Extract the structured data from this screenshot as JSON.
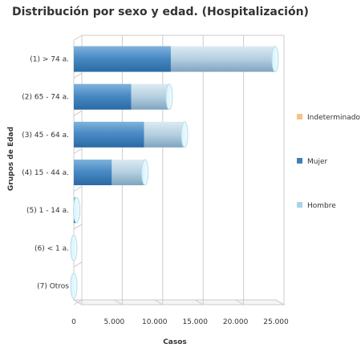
{
  "chart_data": {
    "type": "bar",
    "orientation": "horizontal",
    "stacked": true,
    "style": "3d-cylinder",
    "title": "Distribución por sexo y edad. (Hospitalización)",
    "xlabel": "Casos",
    "ylabel": "Grupos de Edad",
    "xlim": [
      0,
      25000
    ],
    "x_ticks": [
      "0",
      "5.000",
      "10.000",
      "15.000",
      "20.000",
      "25.000"
    ],
    "grid": true,
    "legend_position": "right",
    "categories": [
      "(1) > 74 a.",
      "(2) 65 - 74 a.",
      "(3) 45 - 64 a.",
      "(4) 15 - 44 a.",
      "(5) 1 - 14 a.",
      "(6) < 1 a.",
      "(7) Otros"
    ],
    "series": [
      {
        "name": "Hombre",
        "color": "#a8d4ec",
        "values": [
          12900,
          4700,
          5000,
          4100,
          100,
          0,
          0
        ]
      },
      {
        "name": "Mujer",
        "color": "#3f7fb6",
        "values": [
          12000,
          7100,
          8700,
          4700,
          250,
          0,
          0
        ]
      },
      {
        "name": "Indeterminado",
        "color": "#f2c48a",
        "values": [
          0,
          0,
          0,
          0,
          0,
          0,
          0
        ]
      }
    ]
  }
}
